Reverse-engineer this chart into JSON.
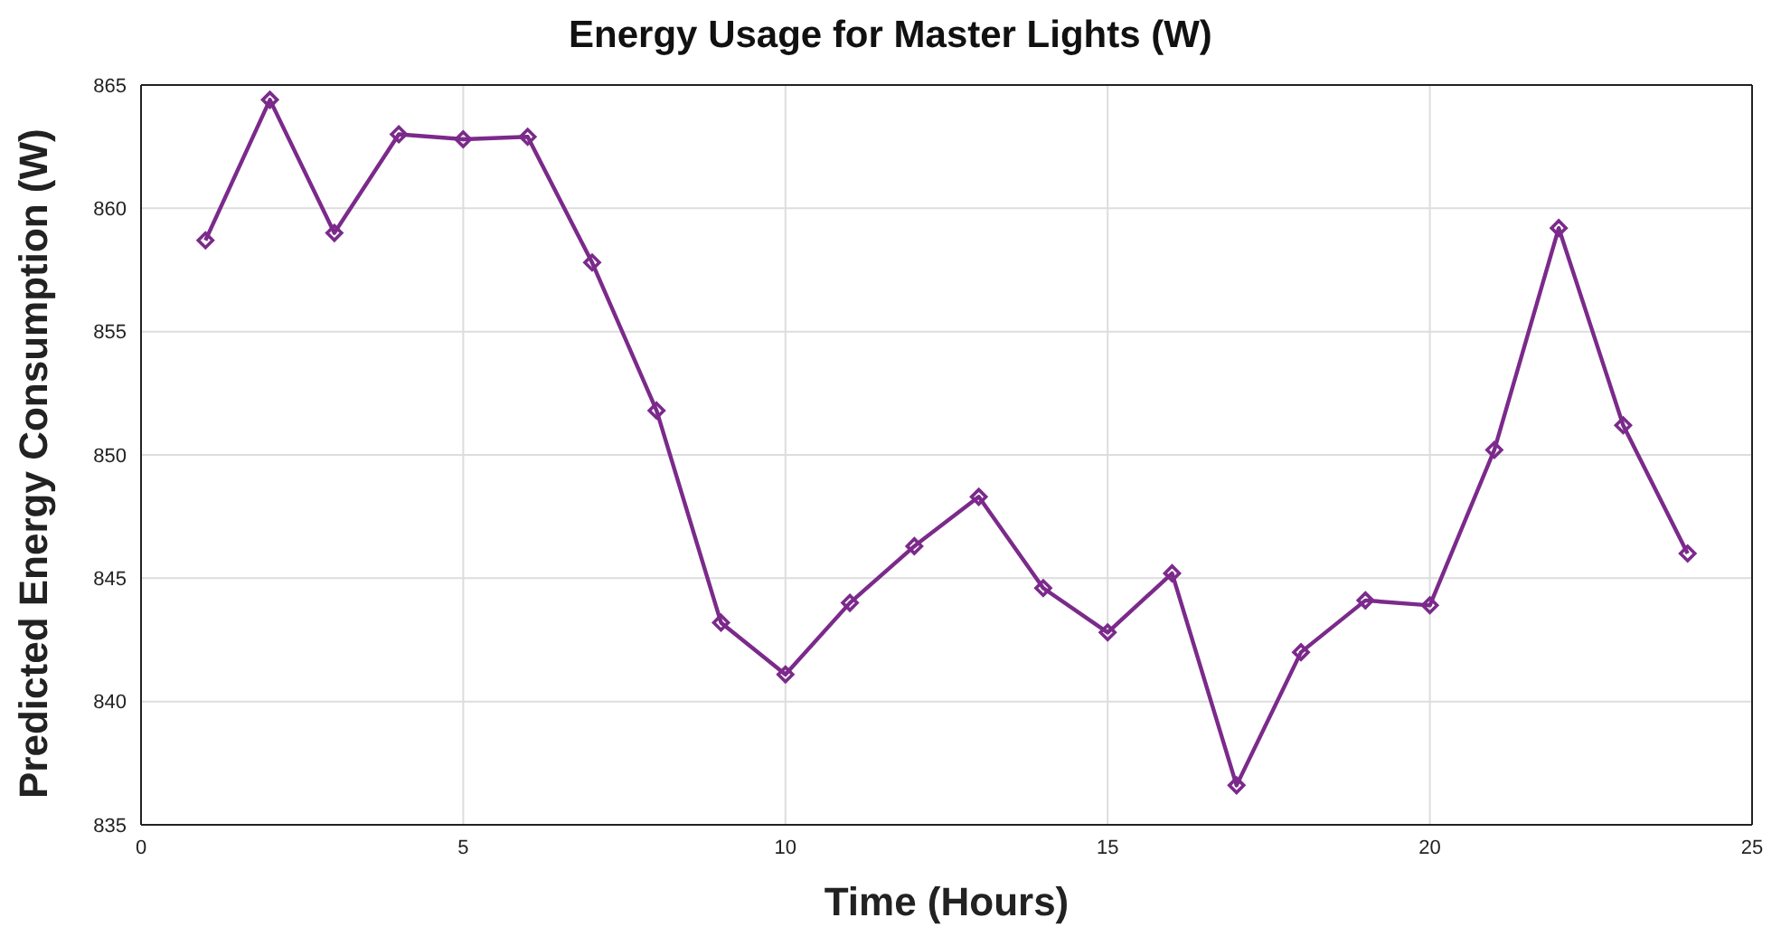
{
  "chart_data": {
    "type": "line",
    "title": "Energy Usage for Master Lights (W)",
    "xlabel": "Time (Hours)",
    "ylabel": "Predicted Energy Consumption (W)",
    "x": [
      1,
      2,
      3,
      4,
      5,
      6,
      7,
      8,
      9,
      10,
      11,
      12,
      13,
      14,
      15,
      16,
      17,
      18,
      19,
      20,
      21,
      22,
      23,
      24
    ],
    "series": [
      {
        "color": "#7b2a8b",
        "values": [
          858.7,
          864.4,
          859.0,
          863.0,
          862.8,
          862.9,
          857.8,
          851.8,
          843.2,
          841.1,
          844.0,
          846.3,
          848.3,
          844.6,
          842.8,
          845.2,
          836.6,
          842.0,
          844.1,
          843.9,
          850.2,
          859.2,
          851.2,
          846.0
        ]
      }
    ],
    "xlim": [
      0,
      25
    ],
    "xticks": [
      0,
      5,
      10,
      15,
      20,
      25
    ],
    "ylim": [
      835,
      865
    ],
    "yticks": [
      835,
      840,
      845,
      850,
      855,
      860,
      865
    ],
    "grid": true,
    "marker": "diamond",
    "line_style": "solid",
    "legend": false
  }
}
